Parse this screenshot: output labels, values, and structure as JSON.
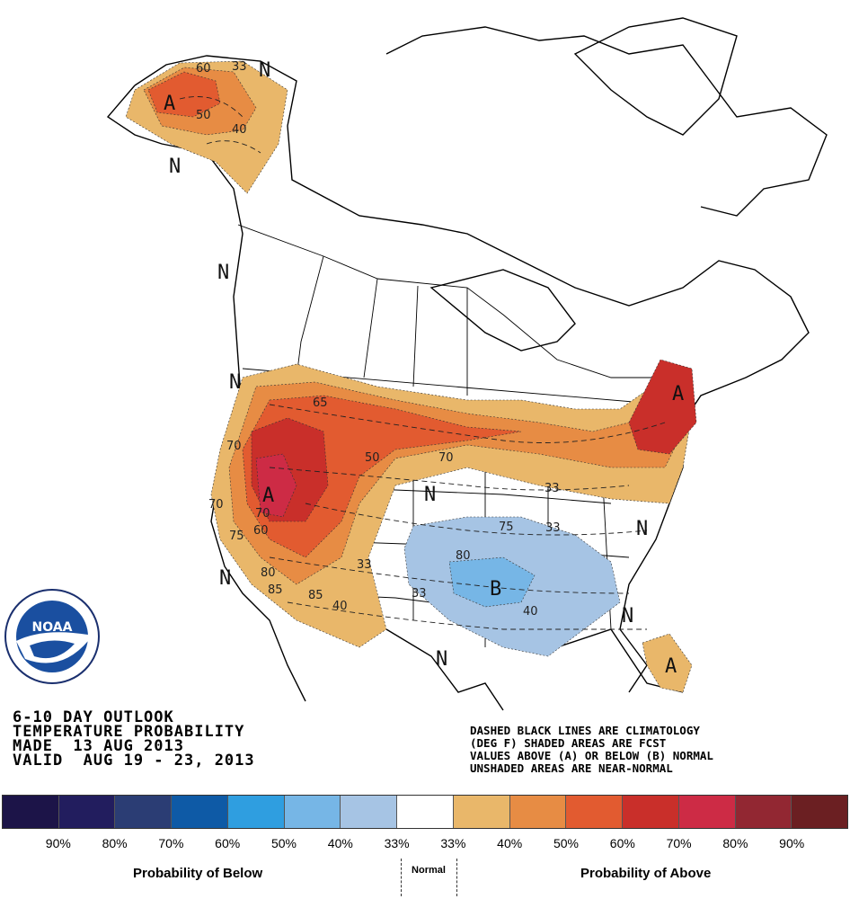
{
  "title": {
    "line1": "6-10 DAY OUTLOOK",
    "line2": "TEMPERATURE PROBABILITY",
    "line3": "MADE  13 AUG 2013",
    "line4": "VALID  AUG 19 - 23, 2013"
  },
  "note": {
    "line1": "DASHED BLACK LINES ARE CLIMATOLOGY",
    "line2": "(DEG F) SHADED AREAS ARE FCST",
    "line3": "VALUES ABOVE (A) OR BELOW (B) NORMAL",
    "line4": "UNSHADED AREAS ARE NEAR-NORMAL"
  },
  "logo": {
    "name": "noaa-logo",
    "text": "NOAA",
    "ring_text": "NATIONAL OCEANIC AND ATMOSPHERIC ADMINISTRATION • U.S. DEPARTMENT OF COMMERCE"
  },
  "map_labels": {
    "above": "A",
    "below": "B",
    "near_normal": "N"
  },
  "contour_labels": {
    "c33": "33",
    "c40": "40",
    "c50": "50",
    "c60": "60",
    "c65": "65",
    "c70": "70",
    "c75": "75",
    "c80": "80",
    "c85": "85"
  },
  "legend": {
    "colors": [
      "#1c1448",
      "#221d5e",
      "#2b3d74",
      "#0e5aa6",
      "#2f9ee0",
      "#76b6e6",
      "#a6c4e4",
      "#ffffff",
      "#e9b76a",
      "#e78c44",
      "#e25b30",
      "#c92f2a",
      "#cd2b45",
      "#922732",
      "#6b1f22"
    ],
    "ticks": [
      "90%",
      "80%",
      "70%",
      "60%",
      "50%",
      "40%",
      "33%",
      "33%",
      "40%",
      "50%",
      "60%",
      "70%",
      "80%",
      "90%"
    ],
    "below_caption": "Probability of Below",
    "normal_caption": "Normal",
    "above_caption": "Probability of Above"
  }
}
